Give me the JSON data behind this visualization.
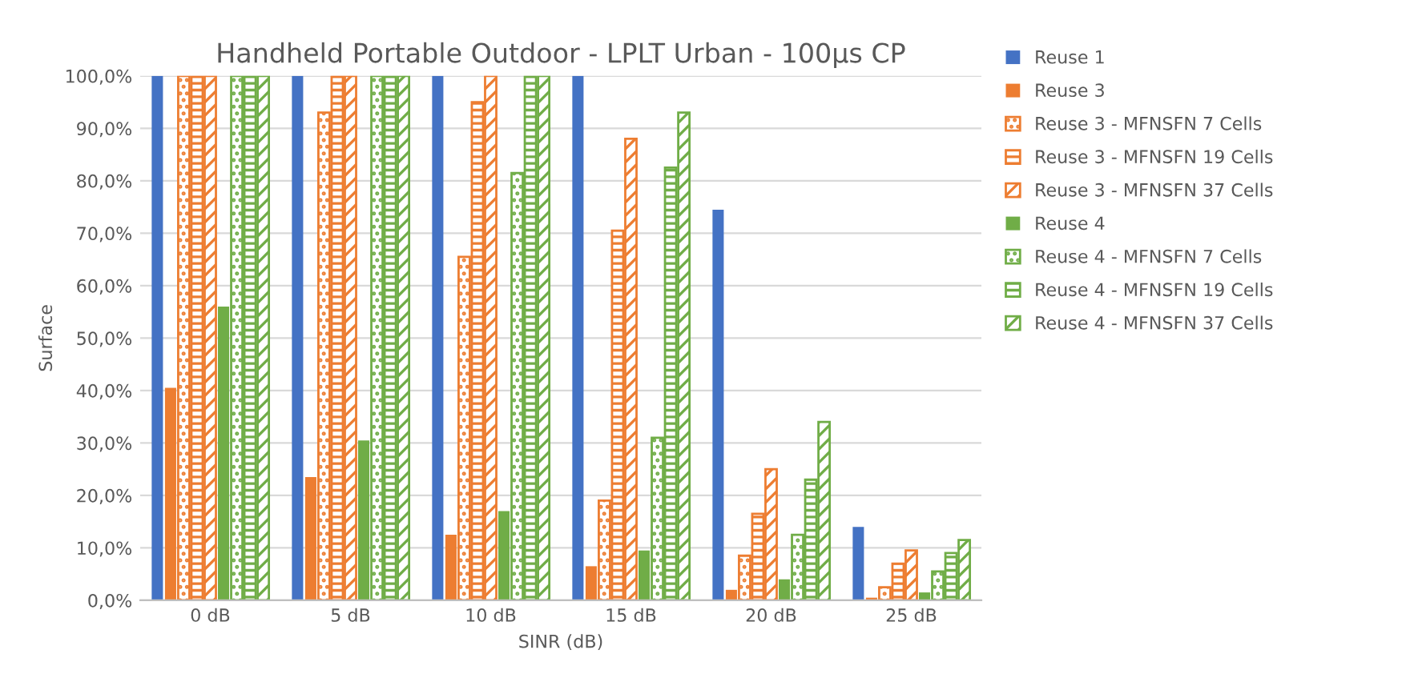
{
  "chart_data": {
    "type": "bar",
    "title": "Handheld Portable Outdoor - LPLT Urban - 100µs CP",
    "xlabel": "SINR (dB)",
    "ylabel": "Surface",
    "categories": [
      "0 dB",
      "5 dB",
      "10 dB",
      "15 dB",
      "20 dB",
      "25 dB"
    ],
    "series": [
      {
        "name": "Reuse 1",
        "color": "#4472c4",
        "values": [
          100,
          100,
          100,
          100,
          74.5,
          14
        ]
      },
      {
        "name": "Reuse 3",
        "color": "#ed7d31",
        "values": [
          40.5,
          23.5,
          12.5,
          6.5,
          2,
          0.5
        ]
      },
      {
        "name": "Reuse 3 - MFNSFN 7 Cells",
        "color": "#ed7d31",
        "values": [
          100,
          93,
          65.5,
          19,
          8.5,
          2.5
        ]
      },
      {
        "name": "Reuse 3 - MFNSFN 19 Cells",
        "color": "#ed7d31",
        "values": [
          100,
          100,
          95,
          70.5,
          16.5,
          7
        ]
      },
      {
        "name": "Reuse 3 - MFNSFN 37 Cells",
        "color": "#ed7d31",
        "values": [
          100,
          100,
          100,
          88,
          25,
          9.5
        ]
      },
      {
        "name": "Reuse 4",
        "color": "#70ad47",
        "values": [
          56,
          30.5,
          17,
          9.5,
          4,
          1.5
        ]
      },
      {
        "name": "Reuse 4 - MFNSFN 7 Cells",
        "color": "#70ad47",
        "values": [
          100,
          100,
          81.5,
          31,
          12.5,
          5.5
        ]
      },
      {
        "name": "Reuse 4 - MFNSFN 19 Cells",
        "color": "#70ad47",
        "values": [
          100,
          100,
          100,
          82.5,
          23,
          9
        ]
      },
      {
        "name": "Reuse 4 - MFNSFN 37 Cells",
        "color": "#70ad47",
        "values": [
          100,
          100,
          100,
          93,
          34,
          11.5
        ]
      }
    ],
    "ylim": [
      0,
      100
    ],
    "yticks": [
      {
        "value": 0,
        "label": "0,0%"
      },
      {
        "value": 10,
        "label": "10,0%"
      },
      {
        "value": 20,
        "label": "20,0%"
      },
      {
        "value": 30,
        "label": "30,0%"
      },
      {
        "value": 40,
        "label": "40,0%"
      },
      {
        "value": 50,
        "label": "50,0%"
      },
      {
        "value": 60,
        "label": "60,0%"
      },
      {
        "value": 70,
        "label": "70,0%"
      },
      {
        "value": 80,
        "label": "80,0%"
      },
      {
        "value": 90,
        "label": "90,0%"
      },
      {
        "value": 100,
        "label": "100,0%"
      }
    ],
    "grid": "y",
    "legend": "right"
  }
}
